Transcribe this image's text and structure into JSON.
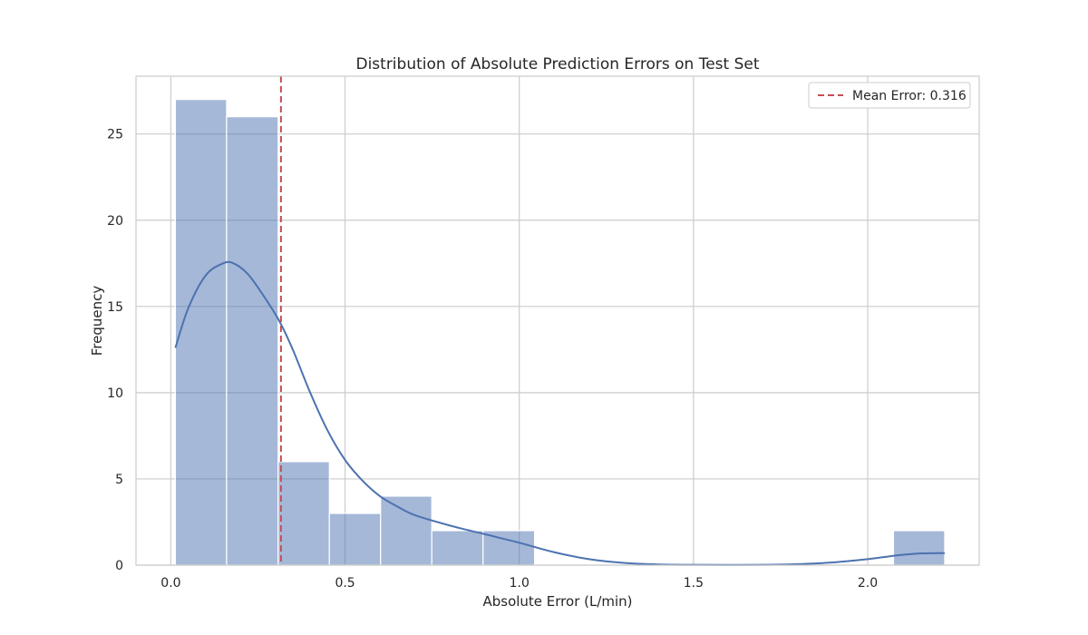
{
  "chart_data": {
    "type": "bar",
    "title": "Distribution of Absolute Prediction Errors on Test Set",
    "xlabel": "Absolute Error (L/min)",
    "ylabel": "Frequency",
    "xlim": [
      -0.1,
      2.32
    ],
    "ylim": [
      0,
      28.35
    ],
    "x_ticks": [
      0.0,
      0.5,
      1.0,
      1.5,
      2.0
    ],
    "x_tick_labels": [
      "0.0",
      "0.5",
      "1.0",
      "1.5",
      "2.0"
    ],
    "y_ticks": [
      0,
      5,
      10,
      15,
      20,
      25
    ],
    "y_tick_labels": [
      "0",
      "5",
      "10",
      "15",
      "20",
      "25"
    ],
    "grid": true,
    "bins": [
      {
        "start": 0.013,
        "end": 0.16,
        "count": 27
      },
      {
        "start": 0.16,
        "end": 0.308,
        "count": 26
      },
      {
        "start": 0.308,
        "end": 0.455,
        "count": 6
      },
      {
        "start": 0.455,
        "end": 0.602,
        "count": 3
      },
      {
        "start": 0.602,
        "end": 0.749,
        "count": 4
      },
      {
        "start": 0.749,
        "end": 0.896,
        "count": 2
      },
      {
        "start": 0.896,
        "end": 1.044,
        "count": 2
      },
      {
        "start": 1.044,
        "end": 1.191,
        "count": 0
      },
      {
        "start": 1.191,
        "end": 1.338,
        "count": 0
      },
      {
        "start": 1.338,
        "end": 1.485,
        "count": 0
      },
      {
        "start": 1.485,
        "end": 1.632,
        "count": 0
      },
      {
        "start": 1.632,
        "end": 1.78,
        "count": 0
      },
      {
        "start": 1.78,
        "end": 1.927,
        "count": 0
      },
      {
        "start": 1.927,
        "end": 2.074,
        "count": 0
      },
      {
        "start": 2.074,
        "end": 2.221,
        "count": 2
      }
    ],
    "kde": {
      "x": [
        0.013,
        0.05,
        0.1,
        0.15,
        0.18,
        0.22,
        0.26,
        0.31,
        0.35,
        0.4,
        0.45,
        0.5,
        0.55,
        0.6,
        0.65,
        0.7,
        0.8,
        0.9,
        1.0,
        1.1,
        1.2,
        1.3,
        1.4,
        1.5,
        1.6,
        1.7,
        1.8,
        1.9,
        2.0,
        2.05,
        2.1,
        2.15,
        2.221
      ],
      "y": [
        12.6,
        14.9,
        16.8,
        17.5,
        17.5,
        16.9,
        15.8,
        14.2,
        12.5,
        10.0,
        7.8,
        6.1,
        4.9,
        4.0,
        3.4,
        2.9,
        2.3,
        1.8,
        1.3,
        0.75,
        0.35,
        0.13,
        0.04,
        0.02,
        0.01,
        0.02,
        0.06,
        0.16,
        0.35,
        0.48,
        0.6,
        0.68,
        0.7
      ]
    },
    "mean_line": {
      "x": 0.316,
      "label": "Mean Error: 0.316"
    },
    "legend": {
      "position": "top-right",
      "entries": [
        "Mean Error: 0.316"
      ]
    },
    "colors": {
      "bar": "#4c72b0",
      "kde": "#4c72b0",
      "mean": "#c44e52",
      "grid": "#cccccc"
    }
  }
}
